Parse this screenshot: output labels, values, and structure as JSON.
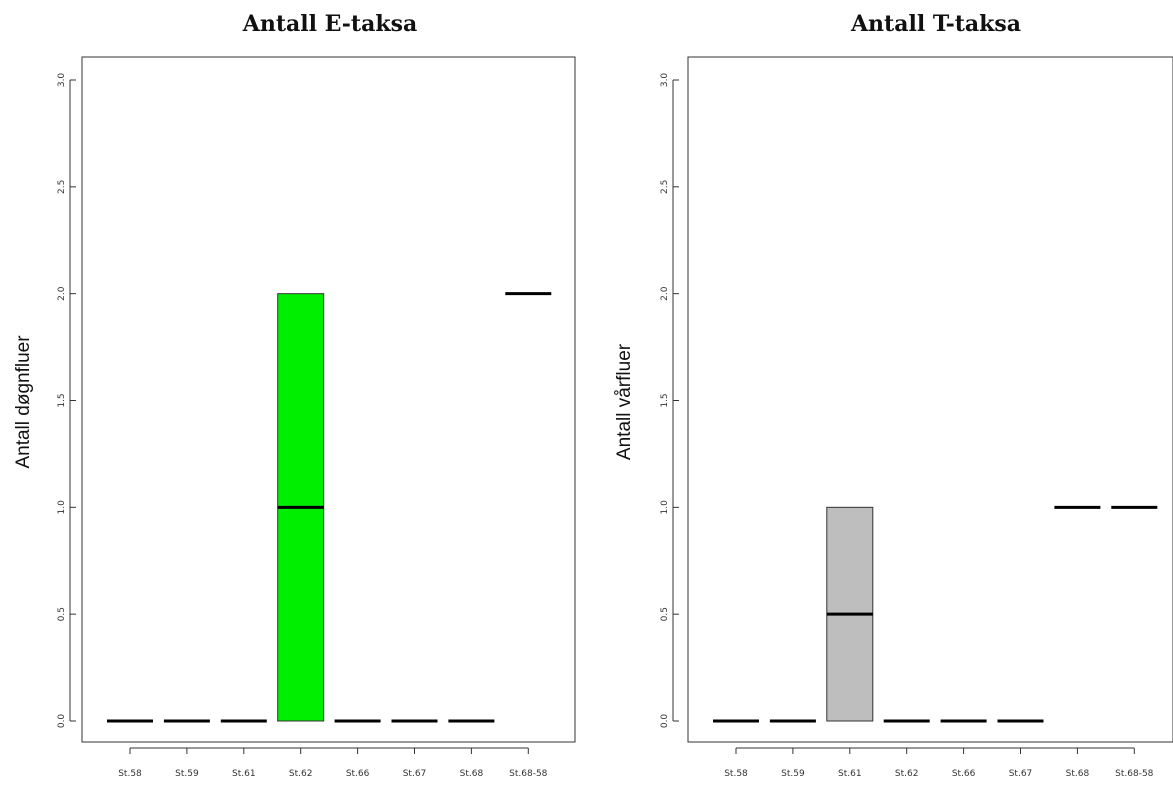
{
  "chart_data": [
    {
      "type": "box",
      "title": "Antall E-taksa",
      "xlabel": "",
      "ylabel": "Antall døgnfluer",
      "ylim": [
        0,
        3
      ],
      "yticks": [
        "0.0",
        "0.5",
        "1.0",
        "1.5",
        "2.0",
        "2.5",
        "3.0"
      ],
      "categories": [
        "St.58",
        "St.59",
        "St.61",
        "St.62",
        "St.66",
        "St.67",
        "St.68",
        "St.68-58"
      ],
      "boxes": [
        {
          "q1": 0,
          "median": 0,
          "q3": 0
        },
        {
          "q1": 0,
          "median": 0,
          "q3": 0
        },
        {
          "q1": 0,
          "median": 0,
          "q3": 0
        },
        {
          "q1": 0,
          "median": 1,
          "q3": 2
        },
        {
          "q1": 0,
          "median": 0,
          "q3": 0
        },
        {
          "q1": 0,
          "median": 0,
          "q3": 0
        },
        {
          "q1": 0,
          "median": 0,
          "q3": 0
        },
        {
          "q1": 2,
          "median": 2,
          "q3": 2
        }
      ],
      "box_color": "#00ee00",
      "grid": false
    },
    {
      "type": "box",
      "title": "Antall T-taksa",
      "xlabel": "",
      "ylabel": "Antall vårfluer",
      "ylim": [
        0,
        3
      ],
      "yticks": [
        "0.0",
        "0.5",
        "1.0",
        "1.5",
        "2.0",
        "2.5",
        "3.0"
      ],
      "categories": [
        "St.58",
        "St.59",
        "St.61",
        "St.62",
        "St.66",
        "St.67",
        "St.68",
        "St.68-58"
      ],
      "boxes": [
        {
          "q1": 0,
          "median": 0,
          "q3": 0
        },
        {
          "q1": 0,
          "median": 0,
          "q3": 0
        },
        {
          "q1": 0,
          "median": 0.5,
          "q3": 1
        },
        {
          "q1": 0,
          "median": 0,
          "q3": 0
        },
        {
          "q1": 0,
          "median": 0,
          "q3": 0
        },
        {
          "q1": 0,
          "median": 0,
          "q3": 0
        },
        {
          "q1": 1,
          "median": 1,
          "q3": 1
        },
        {
          "q1": 1,
          "median": 1,
          "q3": 1
        }
      ],
      "box_color": "#bebebe",
      "grid": false
    }
  ]
}
